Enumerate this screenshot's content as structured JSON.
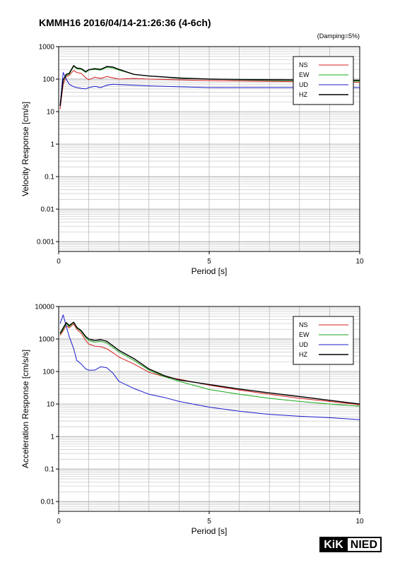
{
  "header": {
    "title": "KMMH16 2016/04/14-21:26:36 (4-6ch)",
    "damping_note": "(Damping=5%)"
  },
  "logo": {
    "left_text": "KiK",
    "right_text": "NIED"
  },
  "colors": {
    "NS": "#d62020",
    "EW": "#1aa81a",
    "UD": "#1a1acc",
    "HZ": "#000000"
  },
  "chart_data": [
    {
      "type": "line",
      "ylabel": "Velocity Response [cm/s]",
      "xlabel": "Period [s]",
      "xlim": [
        0,
        10
      ],
      "ylim": [
        0.0005,
        1000
      ],
      "yscale": "log",
      "xticks": [
        0,
        5,
        10
      ],
      "yticks": [
        0.001,
        0.01,
        0.1,
        1,
        10,
        100,
        1000
      ],
      "yticklabels": [
        "0.001",
        "0.01",
        "0.1",
        "1",
        "10",
        "100",
        "1000"
      ],
      "grid": true,
      "legend_position": "top-right",
      "series": [
        {
          "name": "NS",
          "x": [
            0.05,
            0.15,
            0.25,
            0.35,
            0.5,
            0.6,
            0.75,
            0.9,
            1.0,
            1.2,
            1.4,
            1.6,
            1.8,
            2.0,
            2.5,
            3,
            4,
            5,
            6,
            7,
            8,
            9,
            10
          ],
          "y": [
            12,
            70,
            120,
            130,
            185,
            160,
            150,
            110,
            95,
            115,
            105,
            120,
            110,
            100,
            105,
            100,
            95,
            90,
            88,
            85,
            83,
            82,
            80
          ]
        },
        {
          "name": "EW",
          "x": [
            0.05,
            0.15,
            0.25,
            0.35,
            0.5,
            0.6,
            0.75,
            0.9,
            1.0,
            1.2,
            1.4,
            1.6,
            1.8,
            2.0,
            2.5,
            3,
            4,
            5,
            6,
            7,
            8,
            9,
            10
          ],
          "y": [
            15,
            90,
            130,
            140,
            250,
            210,
            200,
            160,
            190,
            200,
            190,
            230,
            220,
            190,
            140,
            125,
            110,
            100,
            95,
            92,
            90,
            88,
            86
          ]
        },
        {
          "name": "UD",
          "x": [
            0.05,
            0.15,
            0.25,
            0.35,
            0.5,
            0.6,
            0.75,
            0.9,
            1.0,
            1.2,
            1.4,
            1.6,
            1.8,
            2.0,
            2.5,
            3,
            4,
            5,
            6,
            7,
            8,
            9,
            10
          ],
          "y": [
            16,
            160,
            100,
            70,
            58,
            55,
            52,
            50,
            55,
            60,
            55,
            65,
            70,
            68,
            65,
            62,
            58,
            55,
            55,
            55,
            55,
            55,
            55
          ]
        },
        {
          "name": "HZ",
          "x": [
            0.05,
            0.15,
            0.25,
            0.35,
            0.5,
            0.6,
            0.75,
            0.9,
            1.0,
            1.2,
            1.4,
            1.6,
            1.8,
            2.0,
            2.5,
            3,
            4,
            5,
            6,
            7,
            8,
            9,
            10
          ],
          "y": [
            15,
            95,
            140,
            150,
            260,
            220,
            210,
            170,
            195,
            210,
            200,
            245,
            235,
            200,
            140,
            125,
            108,
            100,
            97,
            95,
            94,
            93,
            92
          ]
        }
      ]
    },
    {
      "type": "line",
      "ylabel": "Acceleration Response [cm/s/s]",
      "xlabel": "Period [s]",
      "xlim": [
        0,
        10
      ],
      "ylim": [
        0.005,
        10000
      ],
      "yscale": "log",
      "xticks": [
        0,
        5,
        10
      ],
      "yticks": [
        0.01,
        0.1,
        1,
        10,
        100,
        1000,
        10000
      ],
      "yticklabels": [
        "0.01",
        "0.1",
        "1",
        "10",
        "100",
        "1000",
        "10000"
      ],
      "grid": true,
      "legend_position": "top-right",
      "series": [
        {
          "name": "NS",
          "x": [
            0.05,
            0.15,
            0.25,
            0.35,
            0.5,
            0.6,
            0.75,
            0.9,
            1.0,
            1.2,
            1.4,
            1.6,
            1.8,
            2.0,
            2.5,
            3,
            3.5,
            4,
            5,
            6,
            7,
            8,
            9,
            10
          ],
          "y": [
            1300,
            1800,
            2600,
            2200,
            2900,
            2000,
            1500,
            900,
            700,
            600,
            580,
            500,
            380,
            280,
            170,
            95,
            70,
            58,
            38,
            27,
            20,
            15,
            12,
            9.5
          ]
        },
        {
          "name": "EW",
          "x": [
            0.05,
            0.15,
            0.25,
            0.35,
            0.5,
            0.6,
            0.75,
            0.9,
            1.0,
            1.2,
            1.4,
            1.6,
            1.8,
            2.0,
            2.5,
            3,
            3.5,
            4,
            5,
            6,
            7,
            8,
            9,
            10
          ],
          "y": [
            1400,
            2000,
            3000,
            2400,
            3200,
            2200,
            1700,
            1100,
            900,
            800,
            850,
            750,
            550,
            400,
            220,
            110,
            70,
            50,
            28,
            20,
            15,
            12,
            10,
            8.5
          ]
        },
        {
          "name": "UD",
          "x": [
            0.05,
            0.15,
            0.25,
            0.35,
            0.5,
            0.6,
            0.75,
            0.9,
            1.0,
            1.2,
            1.4,
            1.6,
            1.8,
            2.0,
            2.5,
            3,
            3.5,
            4,
            5,
            6,
            7,
            8,
            9,
            10
          ],
          "y": [
            3000,
            5500,
            2500,
            1200,
            500,
            220,
            170,
            120,
            110,
            110,
            140,
            130,
            90,
            50,
            30,
            20,
            16,
            12,
            8,
            6,
            4.8,
            4.2,
            3.8,
            3.3
          ]
        },
        {
          "name": "HZ",
          "x": [
            0.05,
            0.15,
            0.25,
            0.35,
            0.5,
            0.6,
            0.75,
            0.9,
            1.0,
            1.2,
            1.4,
            1.6,
            1.8,
            2.0,
            2.5,
            3,
            3.5,
            4,
            5,
            6,
            7,
            8,
            9,
            10
          ],
          "y": [
            1500,
            2200,
            3200,
            2600,
            3300,
            2300,
            1800,
            1200,
            1000,
            900,
            950,
            850,
            620,
            450,
            250,
            120,
            75,
            55,
            40,
            29,
            22,
            17,
            13,
            10
          ]
        }
      ]
    }
  ]
}
